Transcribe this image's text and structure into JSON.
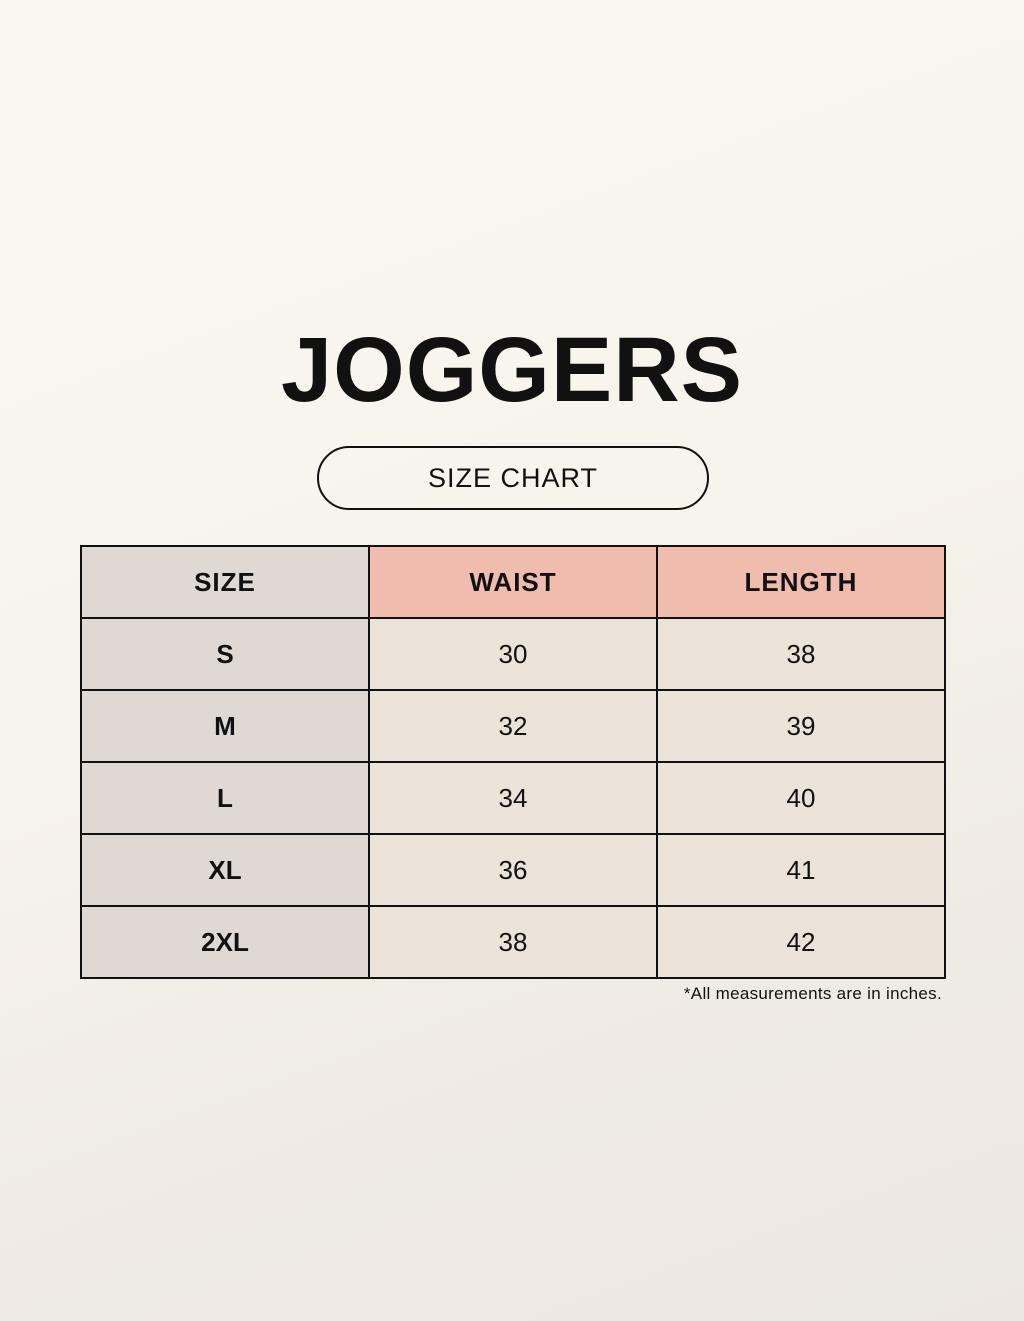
{
  "title": "JOGGERS",
  "subtitle": "SIZE CHART",
  "table": {
    "headers": [
      "SIZE",
      "WAIST",
      "LENGTH"
    ],
    "rows": [
      [
        "S",
        "30",
        "38"
      ],
      [
        "M",
        "32",
        "39"
      ],
      [
        "L",
        "34",
        "40"
      ],
      [
        "XL",
        "36",
        "41"
      ],
      [
        "2XL",
        "38",
        "42"
      ]
    ]
  },
  "note": "*All measurements are in inches.",
  "colors": {
    "header_accent": "#efbcae",
    "size_column": "#e0d8d3",
    "cell": "#ebe3d8",
    "background": "#f8f6ef"
  }
}
